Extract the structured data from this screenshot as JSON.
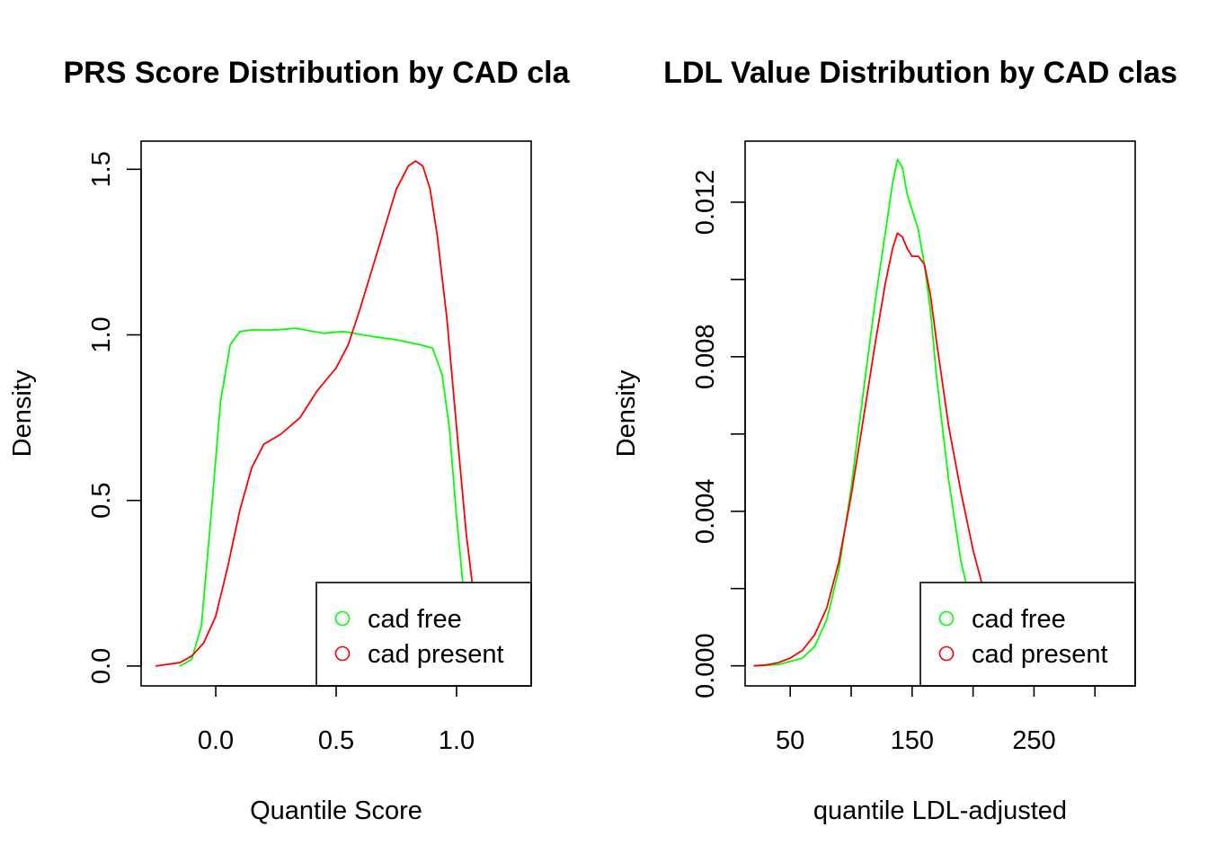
{
  "colors": {
    "cad_free": "#00FF00",
    "cad_present": "#FF0000",
    "axis": "#000000"
  },
  "chart_data": [
    {
      "type": "line",
      "title": "PRS Score Distribution by CAD cla",
      "xlabel": "Quantile Score",
      "ylabel": "Density",
      "xlim": [
        -0.31,
        1.31
      ],
      "ylim": [
        -0.06,
        1.585
      ],
      "xticks": [
        0.0,
        0.5,
        1.0
      ],
      "xtick_labels": [
        "0.0",
        "0.5",
        "1.0"
      ],
      "yticks": [
        0.0,
        0.5,
        1.0,
        1.5
      ],
      "ytick_labels": [
        "0.0",
        "0.5",
        "1.0",
        "1.5"
      ],
      "grid": false,
      "legend_position": "bottom-right",
      "series": [
        {
          "name": "cad free",
          "x": [
            -0.15,
            -0.1,
            -0.06,
            -0.02,
            0.02,
            0.06,
            0.1,
            0.15,
            0.25,
            0.33,
            0.45,
            0.53,
            0.65,
            0.75,
            0.85,
            0.9,
            0.94,
            0.97,
            1.0,
            1.03,
            1.08,
            1.12,
            1.15
          ],
          "y": [
            0.0,
            0.02,
            0.12,
            0.45,
            0.8,
            0.97,
            1.01,
            1.015,
            1.015,
            1.02,
            1.005,
            1.01,
            0.995,
            0.985,
            0.97,
            0.96,
            0.88,
            0.72,
            0.45,
            0.22,
            0.06,
            0.01,
            0.0
          ]
        },
        {
          "name": "cad present",
          "x": [
            -0.25,
            -0.15,
            -0.1,
            -0.05,
            0.0,
            0.05,
            0.1,
            0.15,
            0.2,
            0.27,
            0.35,
            0.42,
            0.5,
            0.55,
            0.6,
            0.65,
            0.7,
            0.75,
            0.8,
            0.83,
            0.86,
            0.89,
            0.92,
            0.96,
            1.0,
            1.04,
            1.08,
            1.11,
            1.15,
            1.2
          ],
          "y": [
            0.0,
            0.01,
            0.03,
            0.07,
            0.15,
            0.3,
            0.47,
            0.6,
            0.67,
            0.7,
            0.75,
            0.83,
            0.9,
            0.97,
            1.08,
            1.2,
            1.32,
            1.44,
            1.51,
            1.525,
            1.51,
            1.44,
            1.3,
            1.05,
            0.72,
            0.4,
            0.16,
            0.06,
            0.02,
            0.0
          ]
        }
      ]
    },
    {
      "type": "line",
      "title": "LDL Value Distribution by CAD clas",
      "xlabel": "quantile LDL-adjusted",
      "ylabel": "Density",
      "xlim": [
        13,
        333
      ],
      "ylim": [
        -0.00052,
        0.01358
      ],
      "xticks": [
        50,
        100,
        150,
        200,
        250,
        300
      ],
      "xtick_labels": [
        "50",
        "",
        "150",
        "",
        "250",
        ""
      ],
      "yticks": [
        0.0,
        0.002,
        0.004,
        0.006,
        0.008,
        0.01,
        0.012
      ],
      "ytick_labels": [
        "0.000",
        "",
        "0.004",
        "",
        "0.008",
        "",
        "0.012"
      ],
      "grid": false,
      "legend_position": "bottom-right",
      "series": [
        {
          "name": "cad free",
          "x": [
            20,
            40,
            60,
            70,
            80,
            90,
            100,
            110,
            120,
            128,
            134,
            138,
            142,
            146,
            150,
            155,
            160,
            165,
            170,
            180,
            190,
            200,
            210,
            220,
            235,
            250,
            270
          ],
          "y": [
            0.0,
            3e-05,
            0.0002,
            0.0005,
            0.0012,
            0.0025,
            0.0046,
            0.0071,
            0.0095,
            0.0112,
            0.0125,
            0.0131,
            0.0129,
            0.0122,
            0.0118,
            0.0113,
            0.0104,
            0.0092,
            0.0075,
            0.0048,
            0.0027,
            0.0014,
            0.0006,
            0.0002,
            5e-05,
            1e-05,
            0.0
          ]
        },
        {
          "name": "cad present",
          "x": [
            20,
            30,
            40,
            50,
            60,
            70,
            80,
            90,
            100,
            110,
            120,
            128,
            134,
            138,
            142,
            146,
            150,
            155,
            160,
            165,
            170,
            180,
            190,
            200,
            210,
            220,
            235,
            250,
            270,
            290
          ],
          "y": [
            0.0,
            2e-05,
            8e-05,
            0.0002,
            0.0004,
            0.0008,
            0.0015,
            0.0027,
            0.0044,
            0.0064,
            0.0084,
            0.0099,
            0.0108,
            0.0112,
            0.0111,
            0.0108,
            0.0106,
            0.0106,
            0.0104,
            0.0096,
            0.0084,
            0.0062,
            0.0045,
            0.003,
            0.0018,
            0.0009,
            0.0003,
            8e-05,
            1e-05,
            0.0
          ]
        }
      ]
    }
  ]
}
